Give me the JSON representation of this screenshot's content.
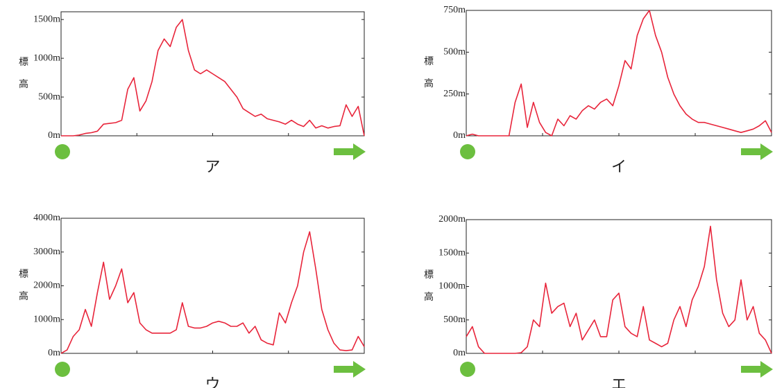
{
  "chart_data": [
    {
      "type": "line",
      "title": "ア",
      "ylabel": "標高",
      "color": "#e8243a",
      "ylim": [
        0,
        1600
      ],
      "yticks": [
        {
          "value": 0,
          "label": "0m"
        },
        {
          "value": 500,
          "label": "500m"
        },
        {
          "value": 1000,
          "label": "1000m"
        },
        {
          "value": 1500,
          "label": "1500m"
        }
      ],
      "values": [
        0,
        0,
        0,
        10,
        30,
        40,
        60,
        150,
        160,
        170,
        200,
        600,
        750,
        320,
        450,
        700,
        1100,
        1250,
        1150,
        1400,
        1500,
        1100,
        850,
        800,
        850,
        800,
        750,
        700,
        600,
        500,
        350,
        300,
        250,
        280,
        220,
        200,
        180,
        150,
        200,
        150,
        120,
        200,
        100,
        130,
        100,
        120,
        130,
        400,
        250,
        380,
        0
      ]
    },
    {
      "type": "line",
      "title": "イ",
      "ylabel": "標高",
      "color": "#e8243a",
      "ylim": [
        0,
        750
      ],
      "yticks": [
        {
          "value": 0,
          "label": "0m"
        },
        {
          "value": 250,
          "label": "250m"
        },
        {
          "value": 500,
          "label": "500m"
        },
        {
          "value": 750,
          "label": "750m"
        }
      ],
      "values": [
        0,
        10,
        0,
        0,
        0,
        0,
        0,
        0,
        200,
        310,
        50,
        200,
        80,
        20,
        0,
        100,
        60,
        120,
        100,
        150,
        180,
        160,
        200,
        220,
        180,
        300,
        450,
        400,
        600,
        700,
        750,
        600,
        500,
        350,
        250,
        180,
        130,
        100,
        80,
        80,
        70,
        60,
        50,
        40,
        30,
        20,
        30,
        40,
        60,
        90,
        20
      ]
    },
    {
      "type": "line",
      "title": "ウ",
      "ylabel": "標高",
      "color": "#e8243a",
      "ylim": [
        0,
        4000
      ],
      "yticks": [
        {
          "value": 0,
          "label": "0m"
        },
        {
          "value": 1000,
          "label": "1000m"
        },
        {
          "value": 2000,
          "label": "2000m"
        },
        {
          "value": 3000,
          "label": "3000m"
        },
        {
          "value": 4000,
          "label": "4000m"
        }
      ],
      "values": [
        0,
        100,
        500,
        700,
        1300,
        800,
        1800,
        2700,
        1600,
        2000,
        2500,
        1500,
        1800,
        900,
        700,
        600,
        600,
        600,
        600,
        700,
        1500,
        800,
        750,
        750,
        800,
        900,
        950,
        900,
        800,
        800,
        900,
        600,
        800,
        400,
        300,
        250,
        1200,
        900,
        1500,
        2000,
        3000,
        3600,
        2500,
        1300,
        700,
        300,
        100,
        80,
        100,
        500,
        200
      ]
    },
    {
      "type": "line",
      "title": "エ",
      "ylabel": "標高",
      "color": "#e8243a",
      "ylim": [
        0,
        2000
      ],
      "yticks": [
        {
          "value": 0,
          "label": "0m"
        },
        {
          "value": 500,
          "label": "500m"
        },
        {
          "value": 1000,
          "label": "1000m"
        },
        {
          "value": 1500,
          "label": "1500m"
        },
        {
          "value": 2000,
          "label": "2000m"
        }
      ],
      "values": [
        250,
        400,
        100,
        0,
        0,
        0,
        0,
        0,
        0,
        10,
        100,
        500,
        400,
        1050,
        600,
        700,
        750,
        400,
        600,
        200,
        350,
        500,
        250,
        250,
        800,
        900,
        400,
        300,
        250,
        700,
        200,
        150,
        100,
        150,
        500,
        700,
        400,
        800,
        1000,
        1300,
        1900,
        1100,
        600,
        400,
        500,
        1100,
        500,
        700,
        300,
        200,
        0
      ]
    }
  ]
}
